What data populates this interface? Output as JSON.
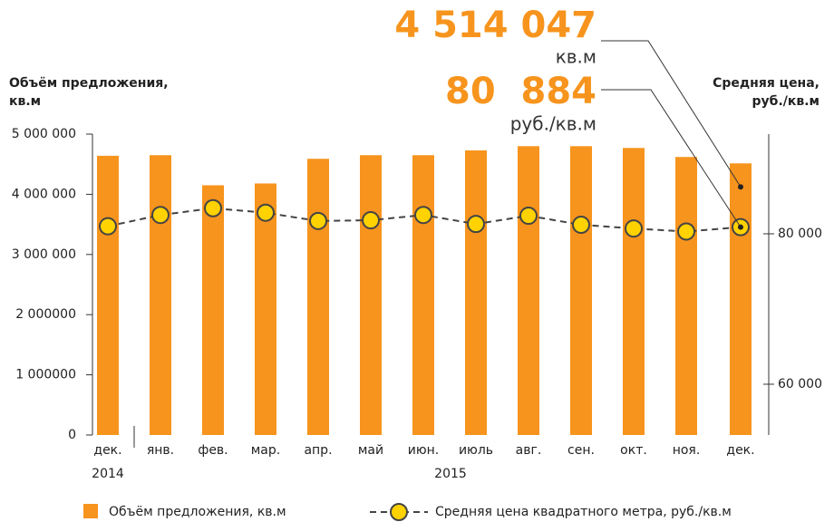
{
  "chart_data": {
    "type": "bar-line",
    "y_label": [
      "Объём предложения,",
      "кв.м"
    ],
    "y2_label": [
      "Средняя цена,",
      "руб./кв.м"
    ],
    "categories": [
      "дек.",
      "янв.",
      "фев.",
      "мар.",
      "апр.",
      "май",
      "июн.",
      "июль",
      "авг.",
      "сен.",
      "окт.",
      "ноя.",
      "дек."
    ],
    "years": [
      "2014",
      "2015"
    ],
    "series": [
      {
        "name": "Объём предложения, кв.м",
        "type": "bar",
        "color": "#f7941d",
        "values": [
          4640000,
          4650000,
          4150000,
          4180000,
          4590000,
          4650000,
          4650000,
          4730000,
          4800000,
          4800000,
          4770000,
          4620000,
          4514047
        ]
      },
      {
        "name": "Средняя цена квадратного метра, руб./кв.м",
        "type": "line",
        "axis": "y2",
        "color": "#ffd200",
        "values": [
          81000,
          82500,
          83400,
          82800,
          81700,
          81800,
          82500,
          81300,
          82400,
          81200,
          80700,
          80300,
          80884
        ]
      }
    ],
    "annotations": [
      {
        "text": "4 514 047",
        "unit": "кв.м"
      },
      {
        "text": "80  884",
        "unit": "руб./кв.м"
      }
    ],
    "ylim": [
      0,
      5000000
    ],
    "yticks": [
      {
        "value": 0,
        "label": "0"
      },
      {
        "value": 1000000,
        "label": "1 000000"
      },
      {
        "value": 2000000,
        "label": "2 000000"
      },
      {
        "value": 3000000,
        "label": "3 000 000"
      },
      {
        "value": 4000000,
        "label": "4 000 000"
      },
      {
        "value": 5000000,
        "label": "5 000 000"
      }
    ],
    "y2lim": [
      53250,
      93250
    ],
    "y2ticks": [
      {
        "value": 60000,
        "label": "60 000"
      },
      {
        "value": 80000,
        "label": "80 000"
      }
    ]
  }
}
